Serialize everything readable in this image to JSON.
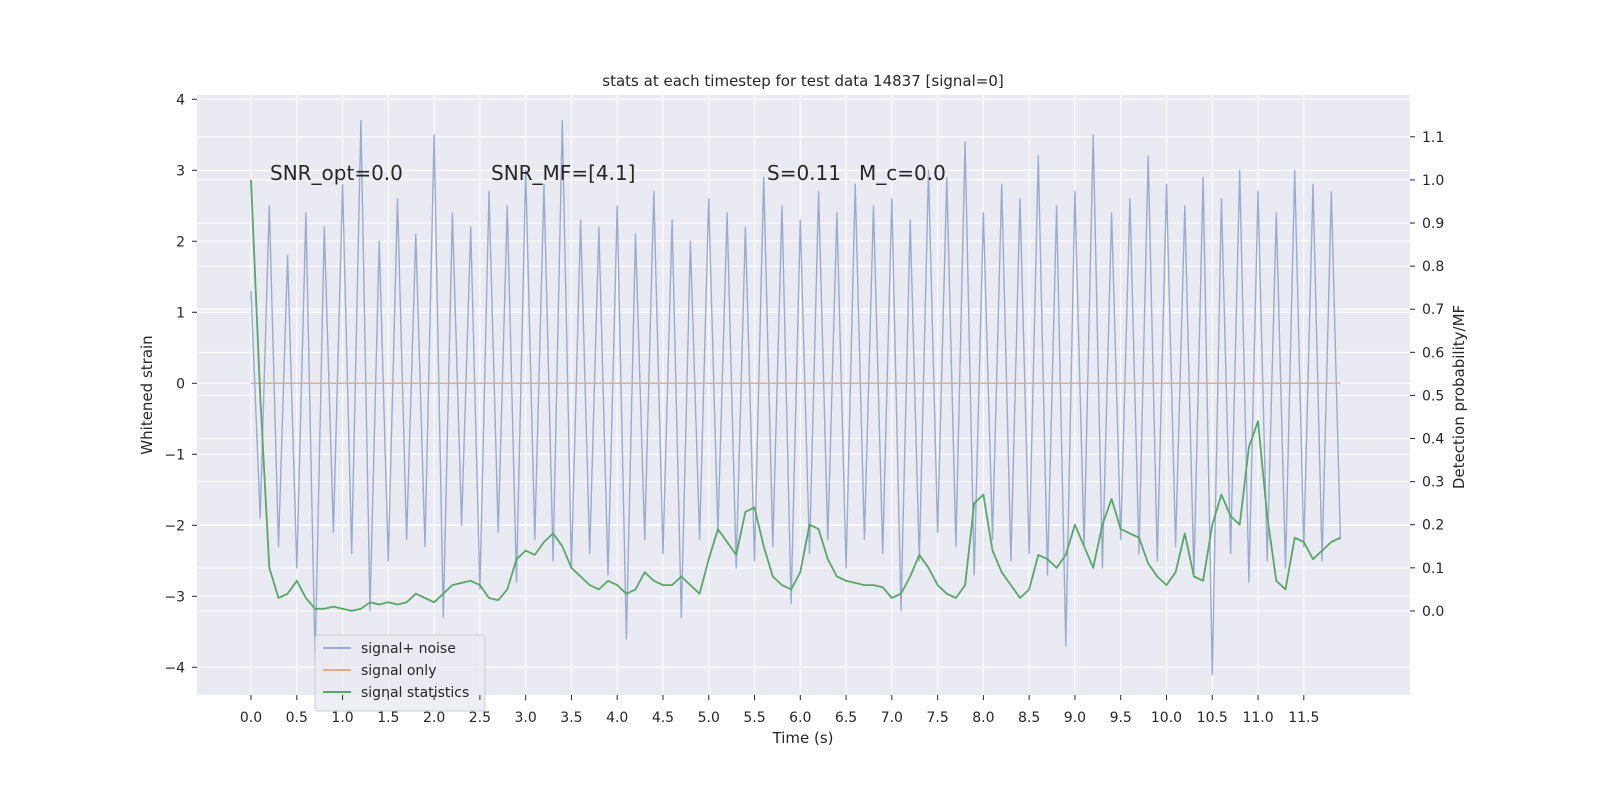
{
  "chart_data": {
    "type": "line",
    "title": "stats at each timestep for test data 14837 [signal=0]",
    "x_label": "Time (s)",
    "y_label": "Whitened strain",
    "y2_label": "Detection probability/MF",
    "annotations": [
      "SNR_opt=0.0",
      "SNR_MF=[4.1]",
      "S=0.11",
      "M_c=0.0"
    ],
    "grid": true,
    "legend": "lower left",
    "xlim": [
      -0.59,
      12.66
    ],
    "ylim": [
      -4.39,
      4.06
    ],
    "y2lim": [
      -0.195,
      1.197
    ],
    "xticks": [
      {
        "value": 0,
        "label": "0.0"
      },
      0.5,
      {
        "value": 1,
        "label": "1.0"
      },
      1.5,
      {
        "value": 2,
        "label": "2.0"
      },
      2.5,
      {
        "value": 3,
        "label": "3.0"
      },
      3.5,
      {
        "value": 4,
        "label": "4.0"
      },
      4.5,
      {
        "value": 5,
        "label": "5.0"
      },
      5.5,
      {
        "value": 6,
        "label": "6.0"
      },
      6.5,
      {
        "value": 7,
        "label": "7.0"
      },
      7.5,
      {
        "value": 8,
        "label": "8.0"
      },
      8.5,
      {
        "value": 9,
        "label": "9.0"
      },
      9.5,
      {
        "value": 10,
        "label": "10.0"
      },
      10.5,
      {
        "value": 11,
        "label": "11.0"
      },
      11.5
    ],
    "yticks": [
      {
        "value": -4,
        "label": "−4"
      },
      {
        "value": -3,
        "label": "−3"
      },
      {
        "value": -2,
        "label": "−2"
      },
      {
        "value": -1,
        "label": "−1"
      },
      0,
      1,
      2,
      3,
      4
    ],
    "y2ticks": [
      {
        "value": 0,
        "label": "0.0"
      },
      0.1,
      0.2,
      0.3,
      0.4,
      0.5,
      0.6,
      0.7,
      0.8,
      0.9,
      {
        "value": 1,
        "label": "1.0"
      },
      1.1
    ],
    "x": [
      0,
      0.1,
      0.2,
      0.3,
      0.4,
      0.5,
      0.6,
      0.7,
      0.8,
      0.9,
      1,
      1.1,
      1.2,
      1.3,
      1.4,
      1.5,
      1.6,
      1.7,
      1.8,
      1.9,
      2,
      2.1,
      2.2,
      2.3,
      2.4,
      2.5,
      2.6,
      2.7,
      2.8,
      2.9,
      3,
      3.1,
      3.2,
      3.3,
      3.4,
      3.5,
      3.6,
      3.7,
      3.8,
      3.9,
      4,
      4.1,
      4.2,
      4.3,
      4.4,
      4.5,
      4.6,
      4.7,
      4.8,
      4.9,
      5,
      5.1,
      5.2,
      5.3,
      5.4,
      5.5,
      5.6,
      5.7,
      5.8,
      5.9,
      6,
      6.1,
      6.2,
      6.3,
      6.4,
      6.5,
      6.6,
      6.7,
      6.8,
      6.9,
      7,
      7.1,
      7.2,
      7.3,
      7.4,
      7.5,
      7.6,
      7.7,
      7.8,
      7.9,
      8,
      8.1,
      8.2,
      8.3,
      8.4,
      8.5,
      8.6,
      8.7,
      8.8,
      8.9,
      9,
      9.1,
      9.2,
      9.3,
      9.4,
      9.5,
      9.6,
      9.7,
      9.8,
      9.9,
      10,
      10.1,
      10.2,
      10.3,
      10.4,
      10.5,
      10.6,
      10.7,
      10.8,
      10.9,
      11,
      11.1,
      11.2,
      11.3,
      11.4,
      11.5,
      11.6,
      11.7,
      11.8,
      11.9
    ],
    "series": [
      {
        "name": "signal+ noise",
        "color": "#9aabd0",
        "axis": "y",
        "values": [
          1.3,
          -1.9,
          2.5,
          -2.3,
          1.8,
          -2.6,
          2.4,
          -3.9,
          2.2,
          -2.1,
          2.8,
          -2.4,
          3.7,
          -3.2,
          2.0,
          -2.5,
          2.6,
          -2.2,
          2.1,
          -2.3,
          3.5,
          -3.3,
          2.4,
          -2.0,
          2.2,
          -2.9,
          2.7,
          -2.1,
          2.5,
          -2.8,
          3.0,
          -2.2,
          2.8,
          -2.5,
          3.7,
          -2.6,
          2.3,
          -2.4,
          2.2,
          -2.7,
          2.5,
          -3.6,
          2.1,
          -2.2,
          2.7,
          -2.4,
          2.3,
          -3.3,
          2.0,
          -2.2,
          2.6,
          -2.1,
          2.4,
          -2.6,
          2.2,
          -2.5,
          2.9,
          -2.3,
          2.5,
          -3.1,
          2.3,
          -2.4,
          2.7,
          -2.2,
          2.4,
          -2.6,
          2.8,
          -2.2,
          2.5,
          -2.4,
          2.6,
          -3.2,
          2.3,
          -2.5,
          3.0,
          -2.1,
          2.9,
          -2.3,
          3.4,
          -2.7,
          2.4,
          -2.2,
          2.8,
          -2.5,
          2.6,
          -2.4,
          3.2,
          -2.7,
          2.5,
          -3.7,
          2.7,
          -2.3,
          3.5,
          -2.6,
          2.4,
          -2.2,
          2.6,
          -2.4,
          3.2,
          -2.5,
          2.8,
          -2.3,
          2.5,
          -2.7,
          2.9,
          -4.1,
          2.6,
          -2.4,
          3.0,
          -2.8,
          2.7,
          -2.5,
          2.4,
          -2.6,
          3.0,
          -2.3,
          2.8,
          -2.5,
          2.7,
          -2.2
        ]
      },
      {
        "name": "signal only",
        "color": "#e6a88a",
        "axis": "y",
        "values": [
          0,
          0,
          0,
          0,
          0,
          0,
          0,
          0,
          0,
          0,
          0,
          0,
          0,
          0,
          0,
          0,
          0,
          0,
          0,
          0,
          0,
          0,
          0,
          0,
          0,
          0,
          0,
          0,
          0,
          0,
          0,
          0,
          0,
          0,
          0,
          0,
          0,
          0,
          0,
          0,
          0,
          0,
          0,
          0,
          0,
          0,
          0,
          0,
          0,
          0,
          0,
          0,
          0,
          0,
          0,
          0,
          0,
          0,
          0,
          0,
          0,
          0,
          0,
          0,
          0,
          0,
          0,
          0,
          0,
          0,
          0,
          0,
          0,
          0,
          0,
          0,
          0,
          0,
          0,
          0,
          0,
          0,
          0,
          0,
          0,
          0,
          0,
          0,
          0,
          0,
          0,
          0,
          0,
          0,
          0,
          0,
          0,
          0,
          0,
          0,
          0,
          0,
          0,
          0,
          0,
          0,
          0,
          0,
          0,
          0,
          0,
          0,
          0,
          0,
          0,
          0,
          0,
          0,
          0,
          0
        ]
      },
      {
        "name": "signal statistics",
        "color": "#55a868",
        "axis": "y2",
        "values": [
          1.0,
          0.5,
          0.1,
          0.03,
          0.04,
          0.07,
          0.03,
          0.005,
          0.005,
          0.01,
          0.005,
          0.0,
          0.005,
          0.02,
          0.015,
          0.02,
          0.015,
          0.02,
          0.04,
          0.03,
          0.02,
          0.04,
          0.06,
          0.065,
          0.07,
          0.06,
          0.03,
          0.025,
          0.05,
          0.12,
          0.14,
          0.13,
          0.16,
          0.18,
          0.15,
          0.1,
          0.08,
          0.06,
          0.05,
          0.07,
          0.06,
          0.04,
          0.05,
          0.09,
          0.07,
          0.06,
          0.06,
          0.08,
          0.06,
          0.04,
          0.12,
          0.19,
          0.16,
          0.13,
          0.23,
          0.24,
          0.15,
          0.08,
          0.06,
          0.05,
          0.09,
          0.2,
          0.19,
          0.12,
          0.08,
          0.07,
          0.065,
          0.06,
          0.06,
          0.055,
          0.03,
          0.04,
          0.08,
          0.13,
          0.1,
          0.06,
          0.04,
          0.03,
          0.06,
          0.25,
          0.27,
          0.14,
          0.09,
          0.06,
          0.03,
          0.05,
          0.13,
          0.12,
          0.1,
          0.13,
          0.2,
          0.15,
          0.1,
          0.2,
          0.26,
          0.19,
          0.18,
          0.17,
          0.11,
          0.08,
          0.06,
          0.09,
          0.18,
          0.08,
          0.07,
          0.2,
          0.27,
          0.22,
          0.2,
          0.38,
          0.44,
          0.22,
          0.07,
          0.05,
          0.17,
          0.16,
          0.12,
          0.14,
          0.16,
          0.17
        ]
      }
    ]
  }
}
